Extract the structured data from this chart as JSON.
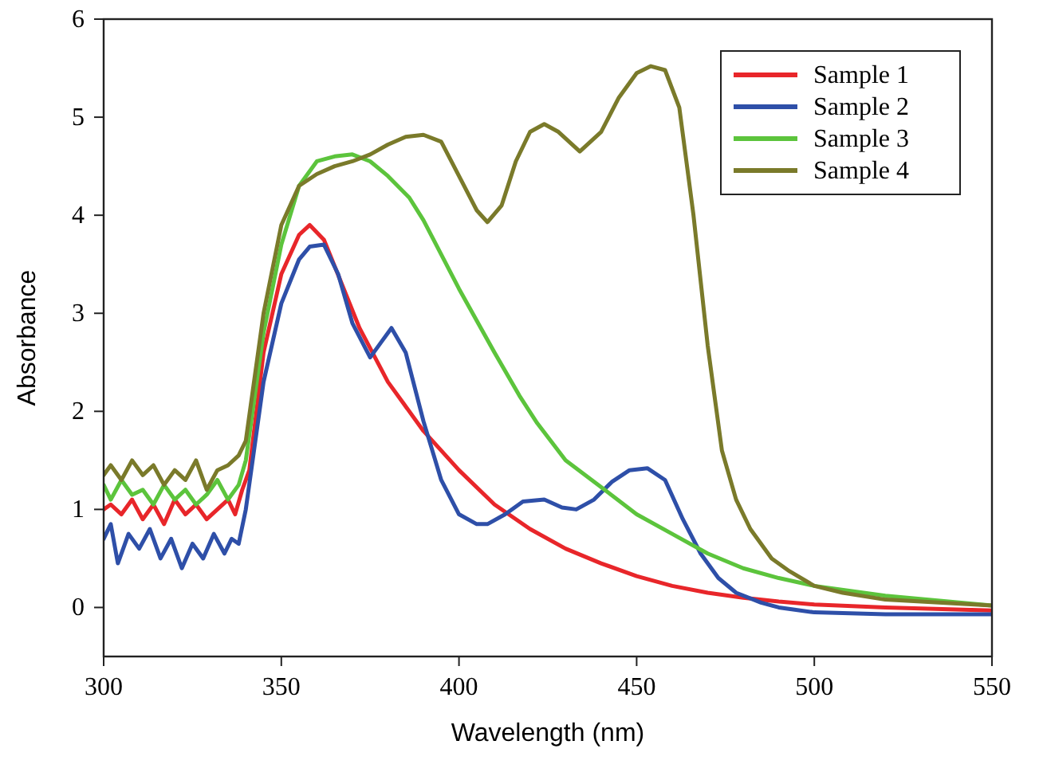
{
  "chart_data": {
    "type": "line",
    "xlabel": "Wavelength (nm)",
    "ylabel": "Absorbance",
    "xlim": [
      300,
      550
    ],
    "ylim": [
      -0.5,
      6
    ],
    "xticks": [
      300,
      350,
      400,
      450,
      500,
      550
    ],
    "yticks": [
      0,
      1,
      2,
      3,
      4,
      5,
      6
    ],
    "legend": "top right",
    "grid": false,
    "marker": "none",
    "line_style": "solid",
    "series": [
      {
        "name": "Sample 1",
        "color": "#e8262a",
        "x": [
          300,
          302,
          305,
          308,
          311,
          314,
          317,
          320,
          323,
          326,
          329,
          332,
          335,
          337,
          339,
          341,
          345,
          350,
          355,
          358,
          362,
          367,
          372,
          380,
          390,
          400,
          410,
          420,
          430,
          440,
          450,
          460,
          470,
          480,
          490,
          500,
          520,
          550
        ],
        "values": [
          1.0,
          1.05,
          0.95,
          1.1,
          0.9,
          1.05,
          0.85,
          1.1,
          0.95,
          1.05,
          0.9,
          1.0,
          1.1,
          0.95,
          1.2,
          1.4,
          2.6,
          3.4,
          3.8,
          3.9,
          3.75,
          3.3,
          2.85,
          2.3,
          1.8,
          1.4,
          1.05,
          0.8,
          0.6,
          0.45,
          0.32,
          0.22,
          0.15,
          0.1,
          0.06,
          0.03,
          0.0,
          -0.03
        ]
      },
      {
        "name": "Sample 2",
        "color": "#2e4fa8",
        "x": [
          300,
          302,
          304,
          307,
          310,
          313,
          316,
          319,
          322,
          325,
          328,
          331,
          334,
          336,
          338,
          340,
          345,
          350,
          355,
          358,
          362,
          366,
          370,
          375,
          378,
          381,
          385,
          390,
          395,
          400,
          405,
          408,
          413,
          418,
          424,
          429,
          433,
          438,
          443,
          448,
          453,
          458,
          463,
          468,
          473,
          478,
          485,
          490,
          500,
          520,
          550
        ],
        "values": [
          0.7,
          0.85,
          0.45,
          0.75,
          0.6,
          0.8,
          0.5,
          0.7,
          0.4,
          0.65,
          0.5,
          0.75,
          0.55,
          0.7,
          0.65,
          1.0,
          2.3,
          3.1,
          3.55,
          3.68,
          3.7,
          3.4,
          2.9,
          2.55,
          2.7,
          2.85,
          2.6,
          1.9,
          1.3,
          0.95,
          0.85,
          0.85,
          0.95,
          1.08,
          1.1,
          1.02,
          1.0,
          1.1,
          1.28,
          1.4,
          1.42,
          1.3,
          0.9,
          0.55,
          0.3,
          0.15,
          0.05,
          0.0,
          -0.05,
          -0.07,
          -0.07
        ]
      },
      {
        "name": "Sample 3",
        "color": "#5cc43c",
        "x": [
          300,
          302,
          305,
          308,
          311,
          314,
          317,
          320,
          323,
          326,
          329,
          332,
          335,
          338,
          340,
          345,
          350,
          355,
          360,
          365,
          370,
          375,
          380,
          386,
          390,
          400,
          410,
          417,
          422,
          430,
          441,
          450,
          460,
          470,
          480,
          490,
          500,
          520,
          550
        ],
        "values": [
          1.25,
          1.1,
          1.3,
          1.15,
          1.2,
          1.05,
          1.25,
          1.1,
          1.2,
          1.05,
          1.15,
          1.3,
          1.1,
          1.25,
          1.5,
          2.8,
          3.7,
          4.3,
          4.55,
          4.6,
          4.62,
          4.55,
          4.4,
          4.18,
          3.95,
          3.25,
          2.6,
          2.16,
          1.88,
          1.5,
          1.2,
          0.95,
          0.75,
          0.55,
          0.4,
          0.3,
          0.22,
          0.12,
          0.02
        ]
      },
      {
        "name": "Sample 4",
        "color": "#7a7a2a",
        "x": [
          300,
          302,
          305,
          308,
          311,
          314,
          317,
          320,
          323,
          326,
          329,
          332,
          335,
          338,
          340,
          345,
          350,
          355,
          360,
          365,
          370,
          375,
          380,
          385,
          390,
          395,
          400,
          405,
          408,
          412,
          416,
          420,
          424,
          428,
          434,
          440,
          445,
          450,
          454,
          458,
          462,
          466,
          470,
          474,
          478,
          482,
          488,
          493,
          500,
          508,
          520,
          550
        ],
        "values": [
          1.35,
          1.45,
          1.3,
          1.5,
          1.35,
          1.45,
          1.25,
          1.4,
          1.3,
          1.5,
          1.2,
          1.4,
          1.45,
          1.55,
          1.7,
          3.0,
          3.9,
          4.3,
          4.42,
          4.5,
          4.55,
          4.62,
          4.72,
          4.8,
          4.82,
          4.75,
          4.4,
          4.05,
          3.93,
          4.1,
          4.55,
          4.85,
          4.93,
          4.85,
          4.65,
          4.85,
          5.2,
          5.45,
          5.52,
          5.48,
          5.1,
          4.0,
          2.67,
          1.6,
          1.1,
          0.8,
          0.5,
          0.37,
          0.22,
          0.15,
          0.08,
          0.02
        ]
      }
    ]
  }
}
